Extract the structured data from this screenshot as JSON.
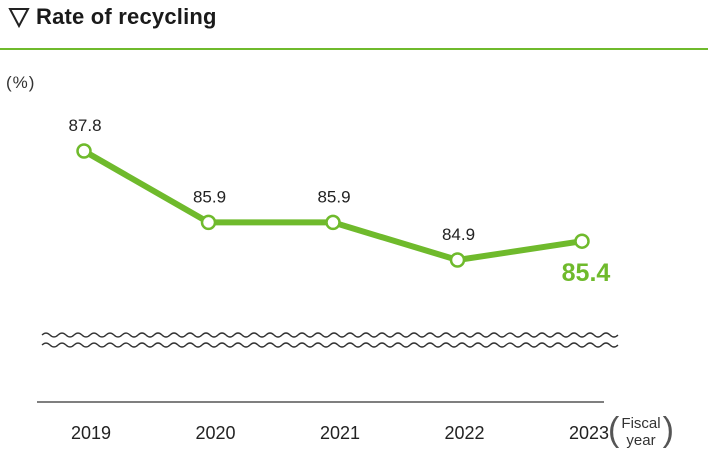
{
  "header": {
    "title": "Rate of recycling",
    "icon": "down-triangle-icon"
  },
  "colors": {
    "accent": "#6fba2c",
    "text": "#222222",
    "axis": "#555555"
  },
  "chart_data": {
    "type": "line",
    "title": "Rate of recycling",
    "ylabel": "(%)",
    "xlabel": "Fiscal year",
    "categories": [
      "2019",
      "2020",
      "2021",
      "2022",
      "2023"
    ],
    "series": [
      {
        "values": [
          87.8,
          85.9,
          85.9,
          84.9,
          85.4
        ]
      }
    ],
    "data_labels": [
      "87.8",
      "85.9",
      "85.9",
      "84.9",
      "85.4"
    ],
    "highlight_last": true,
    "y_axis_break": true,
    "ylim": [
      84.1,
      88.9
    ],
    "grid": false
  }
}
